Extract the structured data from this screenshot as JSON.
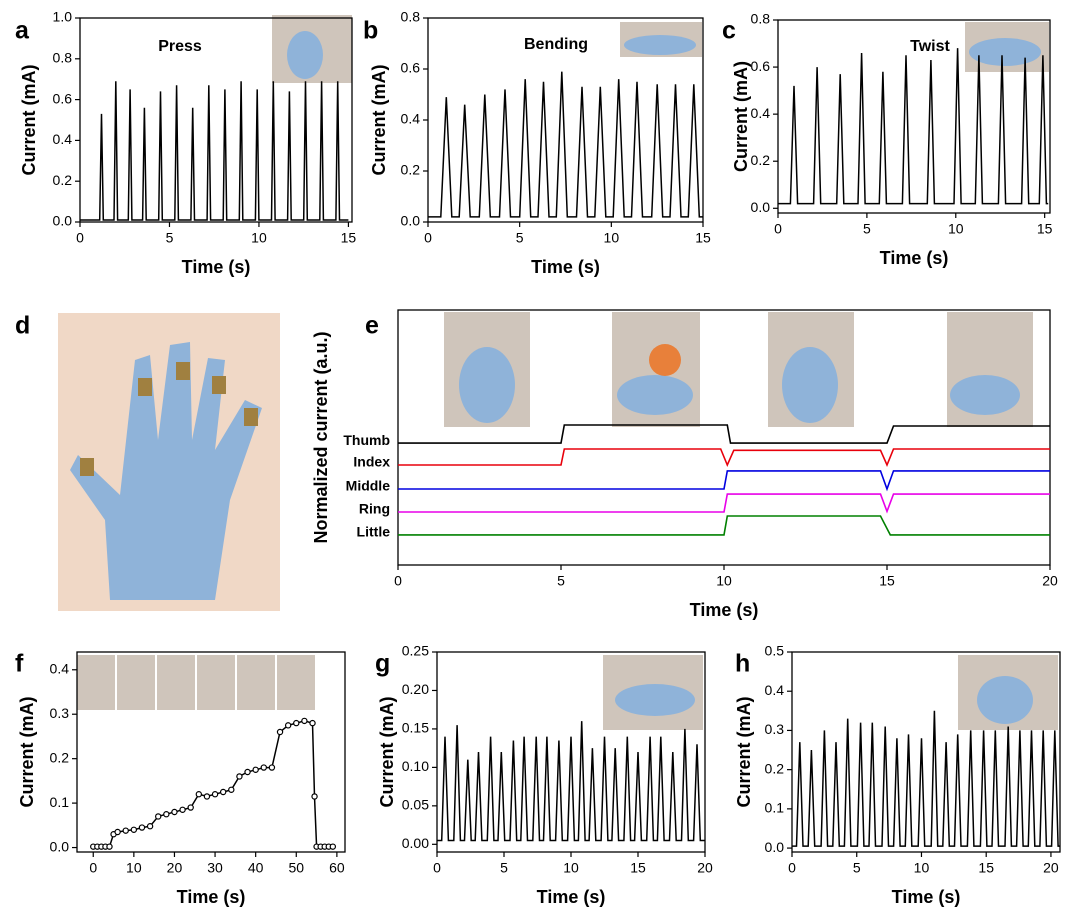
{
  "photo_panel": {
    "label": "d"
  },
  "chart_data": [
    {
      "type": "line",
      "label": "a",
      "title": "Press",
      "x_label": "Time (s)",
      "y_label": "Current (mA)",
      "color": "#000000",
      "xlim": [
        0,
        15.2
      ],
      "ylim": [
        0,
        1.0
      ],
      "xticks": [
        0,
        5,
        10,
        15
      ],
      "yticks": [
        {
          "value": 0,
          "label": "0.0"
        },
        0.2,
        0.4,
        0.6,
        0.8,
        {
          "value": 1.0,
          "label": "1.0"
        }
      ],
      "x": [
        0,
        1.1,
        1.2,
        1.3,
        1.9,
        2.0,
        2.1,
        2.7,
        2.8,
        2.9,
        3.5,
        3.6,
        3.7,
        4.4,
        4.5,
        4.6,
        5.3,
        5.4,
        5.5,
        6.2,
        6.3,
        6.4,
        7.1,
        7.2,
        7.3,
        8.0,
        8.1,
        8.2,
        8.9,
        9.0,
        9.1,
        9.8,
        9.9,
        10.0,
        10.7,
        10.8,
        10.9,
        11.6,
        11.7,
        11.8,
        12.5,
        12.6,
        12.7,
        13.4,
        13.5,
        13.6,
        14.3,
        14.4,
        14.5,
        15
      ],
      "values": [
        0.01,
        0.01,
        0.53,
        0.01,
        0.01,
        0.69,
        0.01,
        0.01,
        0.65,
        0.01,
        0.01,
        0.56,
        0.01,
        0.01,
        0.64,
        0.01,
        0.01,
        0.67,
        0.01,
        0.01,
        0.56,
        0.01,
        0.01,
        0.67,
        0.01,
        0.01,
        0.65,
        0.01,
        0.01,
        0.69,
        0.01,
        0.01,
        0.65,
        0.01,
        0.01,
        0.69,
        0.01,
        0.01,
        0.64,
        0.01,
        0.01,
        0.69,
        0.01,
        0.01,
        0.69,
        0.01,
        0.01,
        0.69,
        0.01,
        0.01
      ]
    },
    {
      "type": "line",
      "label": "b",
      "title": "Bending",
      "x_label": "Time (s)",
      "y_label": "Current (mA)",
      "color": "#000000",
      "xlim": [
        0,
        15
      ],
      "ylim": [
        0,
        0.8
      ],
      "xticks": [
        0,
        5,
        10,
        15
      ],
      "yticks": [
        {
          "value": 0,
          "label": "0.0"
        },
        0.2,
        0.4,
        0.6,
        0.8
      ],
      "x": [
        0,
        0.7,
        1.0,
        1.3,
        1.7,
        2.0,
        2.3,
        2.8,
        3.1,
        3.4,
        3.9,
        4.2,
        4.5,
        5.0,
        5.3,
        5.6,
        6.0,
        6.3,
        6.6,
        7.0,
        7.3,
        7.6,
        8.1,
        8.4,
        8.7,
        9.1,
        9.4,
        9.7,
        10.1,
        10.4,
        10.7,
        11.1,
        11.4,
        11.7,
        12.2,
        12.5,
        12.8,
        13.2,
        13.5,
        13.8,
        14.2,
        14.5,
        14.8,
        15
      ],
      "values": [
        0.02,
        0.02,
        0.49,
        0.02,
        0.02,
        0.46,
        0.02,
        0.02,
        0.5,
        0.02,
        0.02,
        0.52,
        0.02,
        0.02,
        0.56,
        0.02,
        0.02,
        0.55,
        0.02,
        0.02,
        0.59,
        0.02,
        0.02,
        0.53,
        0.02,
        0.02,
        0.53,
        0.02,
        0.02,
        0.56,
        0.02,
        0.02,
        0.55,
        0.02,
        0.02,
        0.54,
        0.02,
        0.02,
        0.54,
        0.02,
        0.02,
        0.54,
        0.02,
        0.02
      ]
    },
    {
      "type": "line",
      "label": "c",
      "title": "Twist",
      "x_label": "Time (s)",
      "y_label": "Current (mA)",
      "color": "#000000",
      "xlim": [
        0,
        15.3
      ],
      "ylim": [
        -0.02,
        0.8
      ],
      "xticks": [
        0,
        5,
        10,
        15
      ],
      "yticks": [
        {
          "value": 0,
          "label": "0.0"
        },
        0.2,
        0.4,
        0.6,
        0.8
      ],
      "x": [
        0,
        0.7,
        0.9,
        1.1,
        2.0,
        2.2,
        2.4,
        3.3,
        3.5,
        3.7,
        4.5,
        4.7,
        4.9,
        5.7,
        5.9,
        6.1,
        7.0,
        7.2,
        7.4,
        8.4,
        8.6,
        8.8,
        9.9,
        10.1,
        10.3,
        11.1,
        11.3,
        11.5,
        12.4,
        12.6,
        12.8,
        13.7,
        13.9,
        14.1,
        14.7,
        14.9,
        15.1,
        15.2
      ],
      "values": [
        0.02,
        0.02,
        0.52,
        0.02,
        0.02,
        0.6,
        0.02,
        0.02,
        0.57,
        0.02,
        0.02,
        0.66,
        0.02,
        0.02,
        0.58,
        0.02,
        0.02,
        0.65,
        0.02,
        0.02,
        0.63,
        0.02,
        0.02,
        0.68,
        0.02,
        0.02,
        0.65,
        0.02,
        0.02,
        0.65,
        0.02,
        0.02,
        0.64,
        0.02,
        0.02,
        0.65,
        0.02,
        0.02
      ]
    },
    {
      "type": "steps",
      "label": "e",
      "x_label": "Time (s)",
      "y_label": "Normalized current (a.u.)",
      "xlim": [
        0,
        20
      ],
      "ylim": [
        0,
        10
      ],
      "xticks": [
        0,
        5,
        10,
        15,
        20
      ],
      "series": [
        {
          "name": "Thumb",
          "color": "#000000",
          "x": [
            0,
            5,
            5.1,
            10.1,
            10.2,
            15,
            15.2,
            20
          ],
          "values": [
            4.78,
            4.78,
            5.49,
            5.49,
            4.78,
            4.78,
            5.45,
            5.45
          ]
        },
        {
          "name": "Index",
          "color": "#e8000b",
          "x": [
            0,
            5,
            5.1,
            9.9,
            10.1,
            10.3,
            14.8,
            15,
            15.2,
            20
          ],
          "values": [
            3.92,
            3.92,
            4.55,
            4.55,
            3.92,
            4.5,
            4.5,
            3.92,
            4.55,
            4.55
          ]
        },
        {
          "name": "Middle",
          "color": "#0000e0",
          "x": [
            0,
            10,
            10.1,
            14.8,
            15,
            15.2,
            20
          ],
          "values": [
            2.98,
            2.98,
            3.69,
            3.69,
            2.98,
            3.69,
            3.69
          ]
        },
        {
          "name": "Ring",
          "color": "#e800e8",
          "x": [
            0,
            10,
            10.1,
            14.8,
            15,
            15.2,
            20
          ],
          "values": [
            2.08,
            2.08,
            2.78,
            2.78,
            2.1,
            2.78,
            2.78
          ]
        },
        {
          "name": "Little",
          "color": "#008000",
          "x": [
            0,
            10,
            10.1,
            14.8,
            15.1,
            20
          ],
          "values": [
            1.18,
            1.18,
            1.92,
            1.92,
            1.18,
            1.18
          ]
        }
      ]
    },
    {
      "type": "line",
      "label": "f",
      "x_label": "Time (s)",
      "y_label": "Current (mA)",
      "color": "#000000",
      "markers": true,
      "xlim": [
        -4,
        62
      ],
      "ylim": [
        -0.01,
        0.44
      ],
      "xticks": [
        0,
        10,
        20,
        30,
        40,
        50,
        60
      ],
      "yticks": [
        {
          "value": 0,
          "label": "0.0"
        },
        0.1,
        0.2,
        0.3,
        0.4
      ],
      "x": [
        0,
        1,
        2,
        3,
        4,
        5,
        6,
        8,
        10,
        12,
        14,
        16,
        18,
        20,
        22,
        24,
        26,
        28,
        30,
        32,
        34,
        36,
        38,
        40,
        42,
        44,
        46,
        48,
        50,
        52,
        54,
        54.5,
        55,
        56,
        57,
        58,
        59
      ],
      "values": [
        0.002,
        0.002,
        0.002,
        0.002,
        0.002,
        0.03,
        0.035,
        0.038,
        0.04,
        0.045,
        0.048,
        0.07,
        0.075,
        0.08,
        0.085,
        0.09,
        0.12,
        0.115,
        0.12,
        0.125,
        0.13,
        0.16,
        0.17,
        0.175,
        0.18,
        0.18,
        0.26,
        0.275,
        0.28,
        0.285,
        0.28,
        0.115,
        0.002,
        0.002,
        0.002,
        0.002,
        0.002
      ]
    },
    {
      "type": "line",
      "label": "g",
      "x_label": "Time (s)",
      "y_label": "Current (mA)",
      "color": "#000000",
      "xlim": [
        0,
        20
      ],
      "ylim": [
        -0.01,
        0.25
      ],
      "xticks": [
        0,
        5,
        10,
        15,
        20
      ],
      "yticks": [
        {
          "value": 0,
          "label": "0.00"
        },
        0.05,
        {
          "value": 0.1,
          "label": "0.10"
        },
        0.15,
        {
          "value": 0.2,
          "label": "0.20"
        },
        0.25
      ],
      "x": [
        0,
        0.35,
        0.6,
        0.85,
        1.25,
        1.5,
        1.75,
        2.05,
        2.3,
        2.55,
        2.85,
        3.1,
        3.35,
        3.75,
        4.0,
        4.25,
        4.55,
        4.8,
        5.05,
        5.45,
        5.7,
        5.95,
        6.25,
        6.5,
        6.75,
        7.15,
        7.4,
        7.65,
        7.95,
        8.2,
        8.45,
        8.85,
        9.1,
        9.35,
        9.75,
        10.0,
        10.25,
        10.55,
        10.8,
        11.05,
        11.35,
        11.6,
        11.85,
        12.25,
        12.5,
        12.75,
        13.05,
        13.3,
        13.55,
        13.95,
        14.2,
        14.45,
        14.75,
        15.0,
        15.25,
        15.65,
        15.9,
        16.15,
        16.45,
        16.7,
        16.95,
        17.35,
        17.6,
        17.85,
        18.25,
        18.5,
        18.75,
        19.15,
        19.4,
        19.65,
        20
      ],
      "values": [
        0.005,
        0.005,
        0.14,
        0.005,
        0.005,
        0.155,
        0.005,
        0.005,
        0.11,
        0.005,
        0.005,
        0.12,
        0.005,
        0.005,
        0.14,
        0.005,
        0.005,
        0.12,
        0.005,
        0.005,
        0.135,
        0.005,
        0.005,
        0.14,
        0.005,
        0.005,
        0.14,
        0.005,
        0.005,
        0.14,
        0.005,
        0.005,
        0.135,
        0.005,
        0.005,
        0.14,
        0.005,
        0.005,
        0.16,
        0.005,
        0.005,
        0.125,
        0.005,
        0.005,
        0.14,
        0.005,
        0.005,
        0.125,
        0.005,
        0.005,
        0.14,
        0.005,
        0.005,
        0.12,
        0.005,
        0.005,
        0.14,
        0.005,
        0.005,
        0.14,
        0.005,
        0.005,
        0.12,
        0.005,
        0.005,
        0.15,
        0.005,
        0.005,
        0.13,
        0.005,
        0.005
      ]
    },
    {
      "type": "line",
      "label": "h",
      "x_label": "Time (s)",
      "y_label": "Current (mA)",
      "color": "#000000",
      "xlim": [
        0,
        20.7
      ],
      "ylim": [
        -0.01,
        0.5
      ],
      "xticks": [
        0,
        5,
        10,
        15,
        20
      ],
      "yticks": [
        {
          "value": 0,
          "label": "0.0"
        },
        0.1,
        0.2,
        0.3,
        0.4,
        0.5
      ],
      "x": [
        0,
        0.35,
        0.6,
        0.85,
        1.25,
        1.5,
        1.75,
        2.25,
        2.5,
        2.75,
        3.15,
        3.4,
        3.65,
        4.05,
        4.3,
        4.55,
        5.05,
        5.3,
        5.55,
        5.95,
        6.2,
        6.45,
        6.95,
        7.2,
        7.45,
        7.85,
        8.1,
        8.35,
        8.75,
        9.0,
        9.25,
        9.75,
        10.0,
        10.25,
        10.75,
        11.0,
        11.25,
        11.65,
        11.9,
        12.15,
        12.55,
        12.8,
        13.05,
        13.55,
        13.8,
        14.05,
        14.55,
        14.8,
        15.05,
        15.45,
        15.7,
        15.95,
        16.45,
        16.7,
        16.95,
        17.35,
        17.6,
        17.85,
        18.25,
        18.5,
        18.75,
        19.15,
        19.4,
        19.65,
        20.05,
        20.3,
        20.55,
        20.7
      ],
      "values": [
        0.005,
        0.005,
        0.27,
        0.005,
        0.005,
        0.25,
        0.005,
        0.005,
        0.3,
        0.005,
        0.005,
        0.27,
        0.005,
        0.005,
        0.33,
        0.005,
        0.005,
        0.32,
        0.005,
        0.005,
        0.32,
        0.005,
        0.005,
        0.31,
        0.005,
        0.005,
        0.28,
        0.005,
        0.005,
        0.29,
        0.005,
        0.005,
        0.28,
        0.005,
        0.005,
        0.35,
        0.005,
        0.005,
        0.27,
        0.005,
        0.005,
        0.29,
        0.005,
        0.005,
        0.3,
        0.005,
        0.005,
        0.3,
        0.005,
        0.005,
        0.3,
        0.005,
        0.005,
        0.31,
        0.005,
        0.005,
        0.3,
        0.005,
        0.005,
        0.3,
        0.005,
        0.005,
        0.3,
        0.005,
        0.005,
        0.3,
        0.005,
        0.005
      ]
    }
  ]
}
